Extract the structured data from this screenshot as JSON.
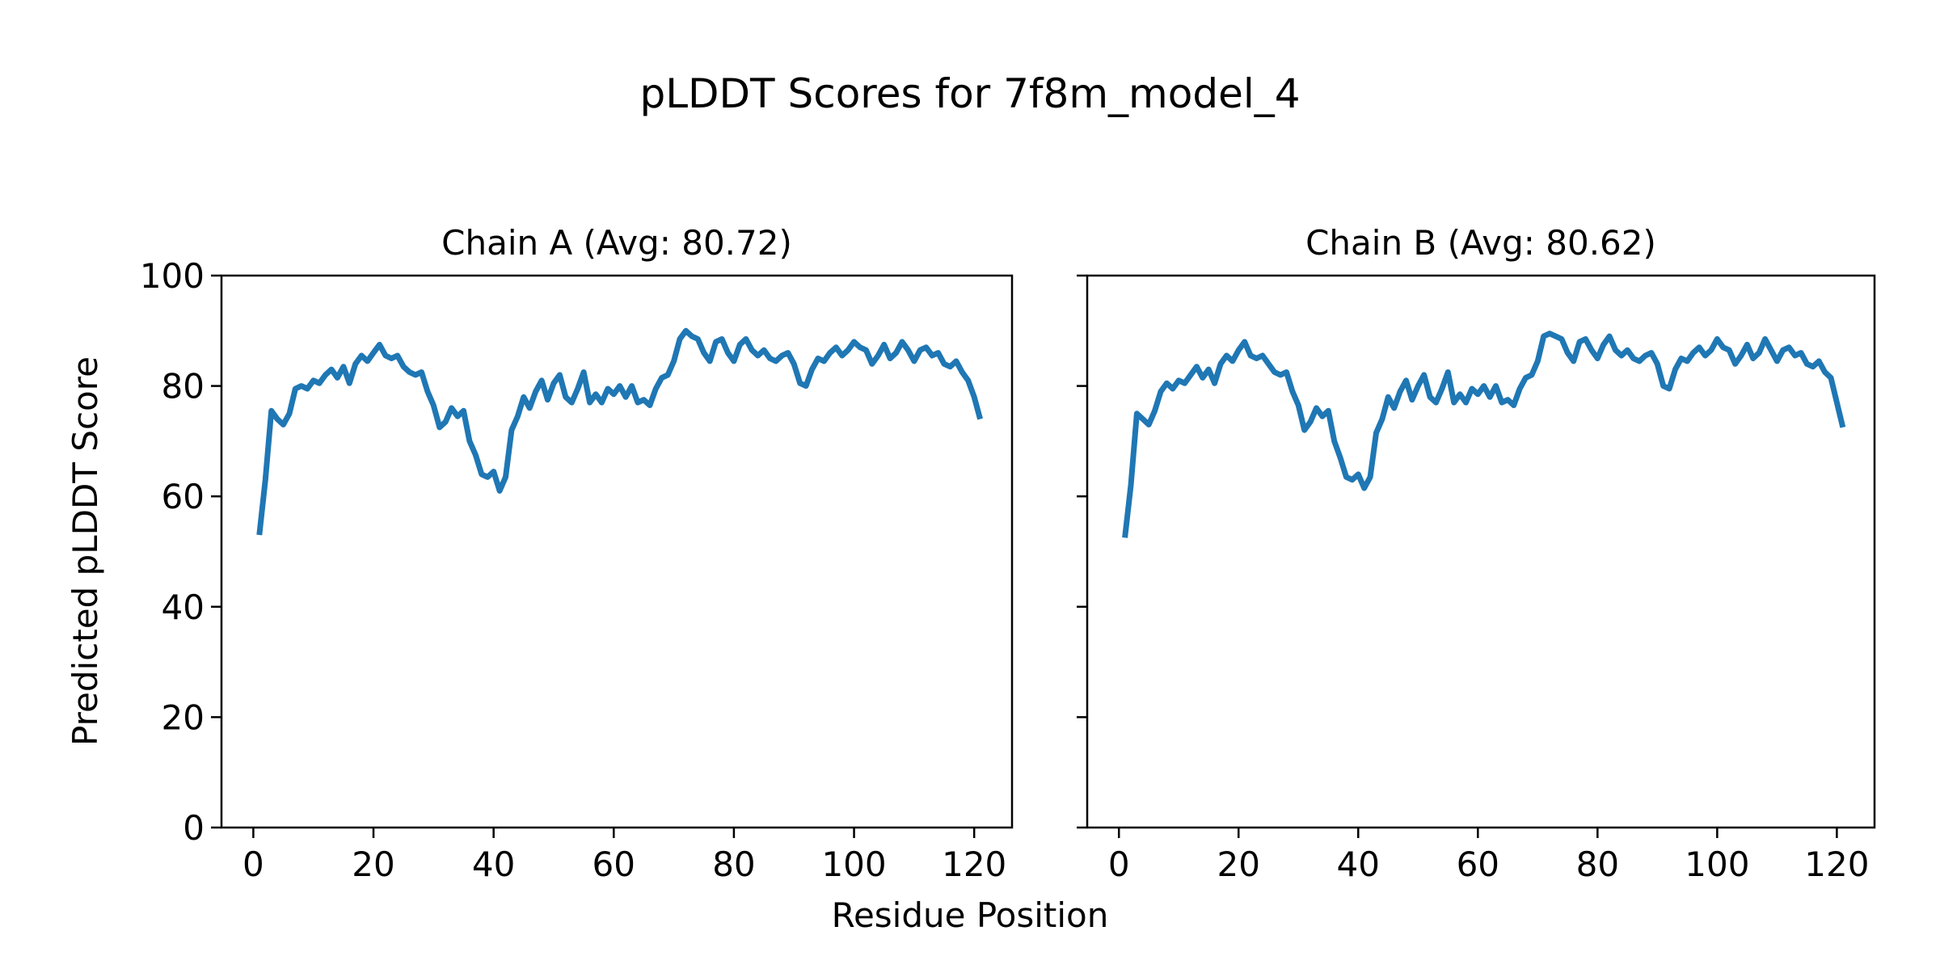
{
  "figure": {
    "background_color": "#ffffff",
    "text_color": "#000000",
    "spine_color": "#000000"
  },
  "chart_data": {
    "type": "line",
    "title": "pLDDT Scores for 7f8m_model_4",
    "xlabel": "Residue Position",
    "ylabel": "Predicted pLDDT Score",
    "line_color": "#1f77b4",
    "grid": false,
    "legend": "none",
    "x_ticks": [
      0,
      20,
      40,
      60,
      80,
      100,
      120
    ],
    "y_ticks": [
      0,
      20,
      40,
      60,
      80,
      100
    ],
    "xlim": [
      -5.3,
      126.3
    ],
    "ylim": [
      0,
      100
    ],
    "x_start_residue": 1,
    "subplots": [
      {
        "title": "Chain A (Avg: 80.72)",
        "chain": "A",
        "avg": 80.72,
        "values": [
          53,
          63,
          75.5,
          74,
          73,
          75,
          79.5,
          80,
          79.5,
          81,
          80.5,
          82,
          83,
          81.5,
          83.5,
          80.5,
          84,
          85.5,
          84.5,
          86,
          87.5,
          85.5,
          85,
          85.5,
          83.5,
          82.5,
          82,
          82.5,
          79,
          76.5,
          72.5,
          73.5,
          76,
          74.5,
          75.5,
          70,
          67.5,
          64,
          63.5,
          64.5,
          61,
          63.5,
          72,
          74.5,
          78,
          76,
          79,
          81,
          77.5,
          80.5,
          82,
          78,
          77,
          79.5,
          82.5,
          77,
          78.5,
          77,
          79.5,
          78.5,
          80,
          78,
          80,
          77,
          77.5,
          76.5,
          79.5,
          81.5,
          82,
          84.5,
          88.5,
          90,
          89,
          88.5,
          86,
          84.5,
          88,
          88.5,
          86,
          84.5,
          87.5,
          88.5,
          86.5,
          85.5,
          86.5,
          85,
          84.5,
          85.5,
          86,
          84,
          80.5,
          80,
          83,
          85,
          84.5,
          86,
          87,
          85.5,
          86.5,
          88,
          87,
          86.5,
          84,
          85.5,
          87.5,
          85,
          86,
          88,
          86.5,
          84.5,
          86.5,
          87,
          85.5,
          86,
          84,
          83.5,
          84.5,
          82.5,
          81,
          78,
          74
        ]
      },
      {
        "title": "Chain B (Avg: 80.62)",
        "chain": "B",
        "avg": 80.62,
        "values": [
          52.5,
          62,
          75,
          74,
          73,
          75.5,
          79,
          80.5,
          79.5,
          81,
          80.5,
          82,
          83.5,
          81.5,
          83,
          80.5,
          84,
          85.5,
          84.5,
          86.5,
          88,
          85.5,
          85,
          85.5,
          84,
          82.5,
          82,
          82.5,
          79,
          76.5,
          72,
          73.5,
          76,
          74.5,
          75.5,
          70,
          67,
          63.5,
          63,
          64,
          61.5,
          63.5,
          71.5,
          74,
          78,
          76,
          79,
          81,
          77.5,
          80,
          82,
          78,
          77,
          79.5,
          82.5,
          77,
          78.5,
          77,
          79.5,
          78.5,
          80,
          78,
          80,
          77,
          77.5,
          76.5,
          79.5,
          81.5,
          82,
          84.5,
          89,
          89.5,
          89,
          88.5,
          86,
          84.5,
          88,
          88.5,
          86.5,
          85,
          87.5,
          89,
          86.5,
          85.5,
          86.5,
          85,
          84.5,
          85.5,
          86,
          84,
          80,
          79.5,
          83,
          85,
          84.5,
          86,
          87,
          85.5,
          86.5,
          88.5,
          87,
          86.5,
          84,
          85.5,
          87.5,
          85,
          86,
          88.5,
          86.5,
          84.5,
          86.5,
          87,
          85.5,
          86,
          84,
          83.5,
          84.5,
          82.5,
          81.5,
          77,
          72.5
        ]
      }
    ]
  }
}
